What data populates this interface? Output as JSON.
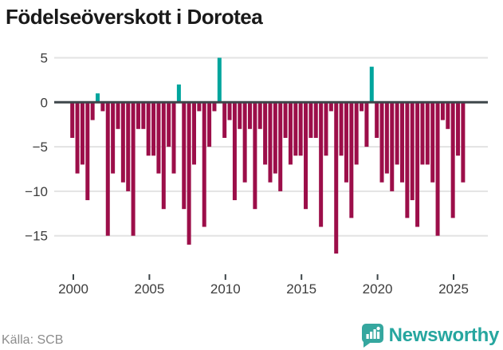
{
  "title": "Födelseöverskott i Dorotea",
  "source": "Källa: SCB",
  "brand": {
    "name": "Newsworthy"
  },
  "colors": {
    "negative_bar": "#9C0E49",
    "positive_bar": "#00A59D",
    "zero_line": "#3E464A",
    "gridline": "#E3E3E3",
    "axis_text": "#3D3D3D",
    "tick_mark": "#3E464A",
    "source_text": "#8C8C8C",
    "brand_teal": "#35A79F",
    "title_text": "#191919"
  },
  "chart_data": {
    "type": "bar",
    "title": "Födelseöverskott i Dorotea",
    "xlabel": "",
    "ylabel": "",
    "grid": true,
    "legend": false,
    "ylim": [
      -19.4,
      5.8
    ],
    "yticks": [
      5,
      0,
      -5,
      -10,
      -15
    ],
    "xticks": [
      2000,
      2005,
      2010,
      2015,
      2020,
      2025
    ],
    "periods_per_year": 3,
    "x": [
      "2000-1",
      "2000-2",
      "2000-3",
      "2001-1",
      "2001-2",
      "2001-3",
      "2002-1",
      "2002-2",
      "2002-3",
      "2003-1",
      "2003-2",
      "2003-3",
      "2004-1",
      "2004-2",
      "2004-3",
      "2005-1",
      "2005-2",
      "2005-3",
      "2006-1",
      "2006-2",
      "2006-3",
      "2007-1",
      "2007-2",
      "2007-3",
      "2008-1",
      "2008-2",
      "2008-3",
      "2009-1",
      "2009-2",
      "2009-3",
      "2010-1",
      "2010-2",
      "2010-3",
      "2011-1",
      "2011-2",
      "2011-3",
      "2012-1",
      "2012-2",
      "2012-3",
      "2013-1",
      "2013-2",
      "2013-3",
      "2014-1",
      "2014-2",
      "2014-3",
      "2015-1",
      "2015-2",
      "2015-3",
      "2016-1",
      "2016-2",
      "2016-3",
      "2017-1",
      "2017-2",
      "2017-3",
      "2018-1",
      "2018-2",
      "2018-3",
      "2019-1",
      "2019-2",
      "2019-3",
      "2020-1",
      "2020-2",
      "2020-3",
      "2021-1",
      "2021-2",
      "2021-3",
      "2022-1",
      "2022-2",
      "2022-3",
      "2023-1",
      "2023-2",
      "2023-3",
      "2024-1",
      "2024-2",
      "2024-3",
      "2025-1",
      "2025-2",
      "2025-3"
    ],
    "values": [
      -4,
      -8,
      -7,
      -11,
      -2,
      1,
      -1,
      -15,
      -8,
      -3,
      -9,
      -10,
      -15,
      -3,
      -3,
      -6,
      -6,
      -8,
      -12,
      -5,
      -8,
      2,
      -12,
      -16,
      -7,
      -1,
      -14,
      -5,
      -1,
      5,
      -4,
      -2,
      -11,
      -3,
      -9,
      -3,
      -12,
      -3,
      -7,
      -9,
      -8,
      -10,
      -4,
      -7,
      -6,
      -6,
      -12,
      -4,
      -4,
      -14,
      -6,
      -1,
      -17,
      -6,
      -9,
      -13,
      -7,
      -1,
      -5,
      4,
      -4,
      -9,
      -8,
      -10,
      -7,
      -9,
      -13,
      -11,
      -14,
      -7,
      -7,
      -9,
      -15,
      -2,
      -3,
      -13,
      -6,
      -9
    ]
  }
}
